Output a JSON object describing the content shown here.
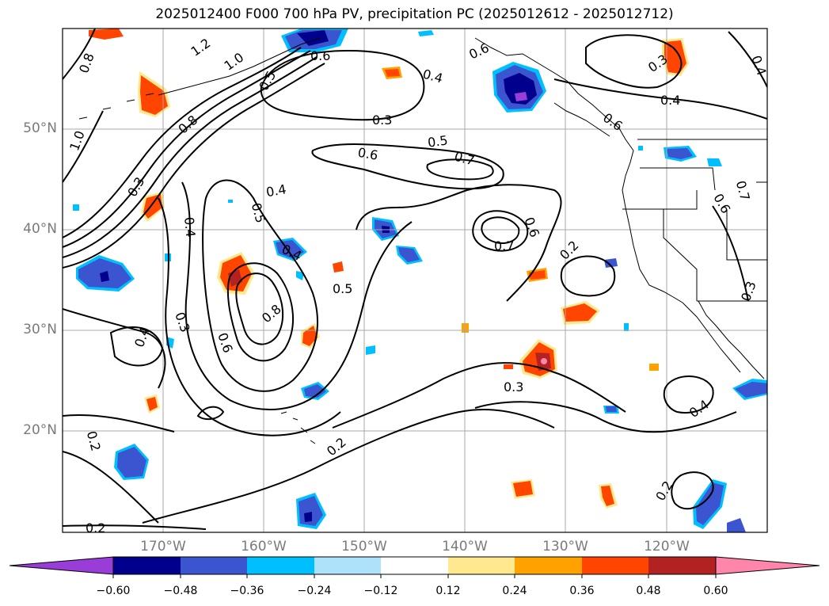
{
  "title": "2025012400 F000 700 hPa PV, precipitation PC (2025012612 - 2025012712)",
  "map": {
    "lat_labels": [
      "50°N",
      "40°N",
      "30°N",
      "20°N"
    ],
    "lon_labels": [
      "170°W",
      "160°W",
      "150°W",
      "140°W",
      "130°W",
      "120°W"
    ],
    "gridlines": true,
    "contour_labels": [
      {
        "text": "1.2"
      },
      {
        "text": "1.0"
      },
      {
        "text": "0.8"
      },
      {
        "text": "0.8"
      },
      {
        "text": "1.0"
      },
      {
        "text": "0.6"
      },
      {
        "text": "0.5"
      },
      {
        "text": "0.6"
      },
      {
        "text": "0.4"
      },
      {
        "text": "0.3"
      },
      {
        "text": "0.5"
      },
      {
        "text": "0.6"
      },
      {
        "text": "0.7"
      },
      {
        "text": "0.4"
      },
      {
        "text": "0.5"
      },
      {
        "text": "0.4"
      },
      {
        "text": "0.7"
      },
      {
        "text": "0.6"
      },
      {
        "text": "0.2"
      },
      {
        "text": "0.4"
      },
      {
        "text": "0.5"
      },
      {
        "text": "0.8"
      },
      {
        "text": "0.3"
      },
      {
        "text": "0.6"
      },
      {
        "text": "0.4"
      },
      {
        "text": "0.3"
      },
      {
        "text": "0.2"
      },
      {
        "text": "0.2"
      },
      {
        "text": "0.3"
      },
      {
        "text": "0.4"
      },
      {
        "text": "0.2"
      },
      {
        "text": "0.2"
      },
      {
        "text": "0.3"
      },
      {
        "text": "0.4"
      },
      {
        "text": "0.6"
      },
      {
        "text": "0.7"
      },
      {
        "text": "0.4"
      },
      {
        "text": "0.3"
      },
      {
        "text": "0.6"
      }
    ]
  },
  "colorbar": {
    "colors": [
      "#9a3dd8",
      "#00008c",
      "#3b54d0",
      "#00bfff",
      "#aee2fa",
      "#ffffff",
      "#ffe88e",
      "#ffa200",
      "#ff4500",
      "#b22222",
      "#ff85ab"
    ],
    "ticks": [
      "−0.60",
      "−0.48",
      "−0.36",
      "−0.24",
      "−0.12",
      "0.12",
      "0.24",
      "0.36",
      "0.48",
      "0.60"
    ]
  }
}
